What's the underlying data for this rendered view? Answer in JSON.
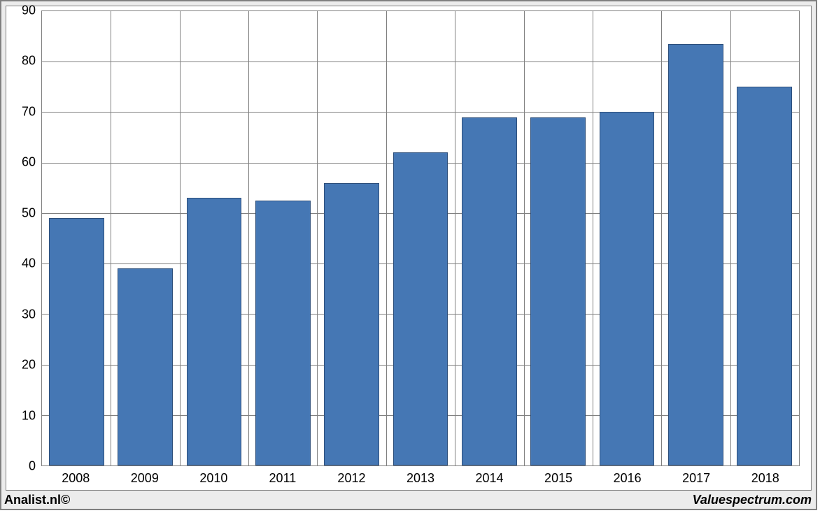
{
  "chart": {
    "type": "bar",
    "categories": [
      "2008",
      "2009",
      "2010",
      "2011",
      "2012",
      "2013",
      "2014",
      "2015",
      "2016",
      "2017",
      "2018"
    ],
    "values": [
      49,
      39,
      53,
      52.5,
      56,
      62,
      69,
      69,
      70,
      83.5,
      75
    ],
    "bar_fill": "#4577b4",
    "bar_border": "#2c4e7a",
    "bar_border_width": 1,
    "bar_width_ratio": 0.8,
    "ylim": [
      0,
      90
    ],
    "ytick_step": 10,
    "grid_color": "#808080",
    "grid_width": 1,
    "background_color": "#ffffff",
    "axis_font_size": 18,
    "axis_font_color": "#000000",
    "outer_border_color": "#808080",
    "card_bg": "#ffffff",
    "frame_bg": "#ececec"
  },
  "footer": {
    "left": "Analist.nl©",
    "right": "Valuespectrum.com",
    "font_size": 18,
    "left_color": "#000000",
    "right_color": "#000000"
  }
}
